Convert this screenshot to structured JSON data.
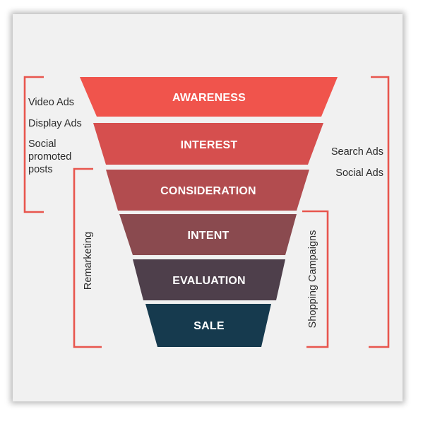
{
  "funnel": {
    "stages": [
      {
        "label": "AWARENESS",
        "color": "#f0544c"
      },
      {
        "label": "INTEREST",
        "color": "#d64f4e"
      },
      {
        "label": "CONSIDERATION",
        "color": "#b24c4f"
      },
      {
        "label": "INTENT",
        "color": "#8a4a4f"
      },
      {
        "label": "EVALUATION",
        "color": "#4e3f4b"
      },
      {
        "label": "SALE",
        "color": "#163a4e"
      }
    ]
  },
  "left_top_group": {
    "items": [
      "Video Ads",
      "Display Ads",
      "Social",
      "promoted",
      "posts"
    ]
  },
  "left_remarketing": {
    "label": "Remarketing"
  },
  "right_search_group": {
    "items": [
      "Search Ads",
      "Social Ads"
    ]
  },
  "right_shopping": {
    "label": "Shopping Campaigns"
  },
  "colors": {
    "bracket": "#e8564e",
    "background": "#f1f1f1"
  }
}
